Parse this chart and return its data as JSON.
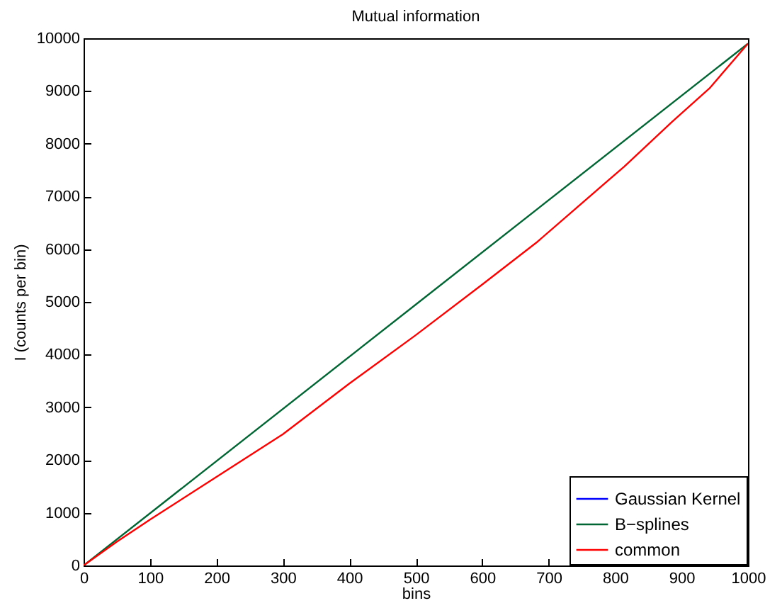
{
  "chart_data": {
    "type": "line",
    "title": "Mutual information",
    "xlabel": "bins",
    "ylabel": "I (counts per bin)",
    "xlim": [
      0,
      1000
    ],
    "ylim": [
      0,
      10000
    ],
    "xticks": [
      0,
      100,
      200,
      300,
      400,
      500,
      600,
      700,
      800,
      900,
      1000
    ],
    "yticks": [
      0,
      1000,
      2000,
      3000,
      4000,
      5000,
      6000,
      7000,
      8000,
      9000,
      10000
    ],
    "grid": false,
    "legend": "bottom right",
    "series": [
      {
        "name": "Gaussian Kernel",
        "color": "#0000ff"
      },
      {
        "name": "B−splines",
        "color": "#006633",
        "x": [
          0,
          500,
          1000
        ],
        "values": [
          0,
          4950,
          9900
        ]
      },
      {
        "name": "common",
        "color": "#ff0000",
        "x": [
          0,
          50,
          100,
          200,
          300,
          400,
          500,
          600,
          683,
          736,
          814,
          886,
          942,
          1000
        ],
        "values": [
          0,
          450,
          870,
          1680,
          2490,
          3450,
          4370,
          5330,
          6140,
          6720,
          7570,
          8420,
          9050,
          9900
        ]
      }
    ]
  }
}
